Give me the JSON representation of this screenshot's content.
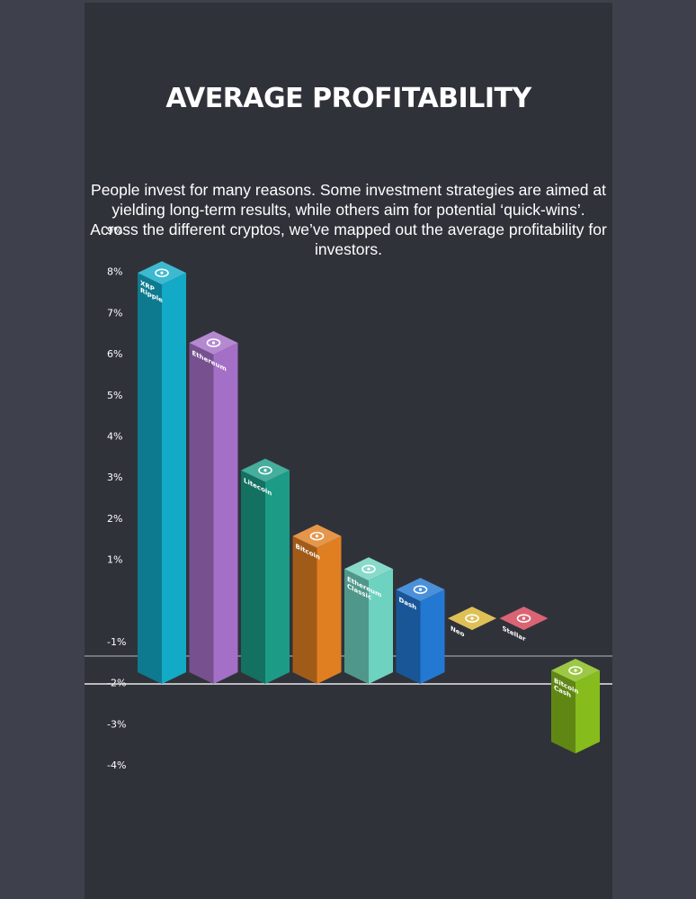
{
  "page": {
    "title": "AVERAGE PROFITABILITY",
    "description": "People invest for many reasons. Some investment strategies are aimed at yielding long-term results, while others aim for potential ‘quick-wins’. Across the different cryptos, we’ve mapped out the average profitability for investors."
  },
  "chart_data": {
    "type": "bar",
    "categories": [
      [
        "XRP",
        "Ripple"
      ],
      [
        "Ethereum"
      ],
      [
        "Litecoin"
      ],
      [
        "Bitcoin"
      ],
      [
        "Ethereum",
        "Classic"
      ],
      [
        "Dash"
      ],
      [
        "Neo"
      ],
      [
        "Stellar"
      ],
      [
        "Bitcoin",
        "Cash"
      ]
    ],
    "values": [
      7.9,
      6.2,
      3.1,
      1.5,
      0.7,
      0.2,
      -0.5,
      -0.5,
      -3.5
    ],
    "icons": [
      "xrp-icon",
      "ethereum-icon",
      "litecoin-icon",
      "bitcoin-icon",
      "ethereum-classic-icon",
      "dash-icon",
      "neo-icon",
      "stellar-icon",
      "bitcoin-cash-icon"
    ],
    "colors": [
      "#12aac6",
      "#a46fc6",
      "#1c9c86",
      "#e07f22",
      "#6ed2c0",
      "#2378d2",
      "#d7b232",
      "#d24256",
      "#86bc1c"
    ],
    "yticks": [
      9,
      8,
      7,
      6,
      5,
      4,
      3,
      2,
      1,
      -1,
      -2,
      -3,
      -4
    ],
    "ytick_labels": [
      "9%",
      "8%",
      "7%",
      "6%",
      "5%",
      "4%",
      "3%",
      "2%",
      "1%",
      "-1%",
      "-2%",
      "-3%",
      "-4%"
    ],
    "ylim": [
      -4,
      9
    ],
    "xlabel": "",
    "ylabel": ""
  }
}
